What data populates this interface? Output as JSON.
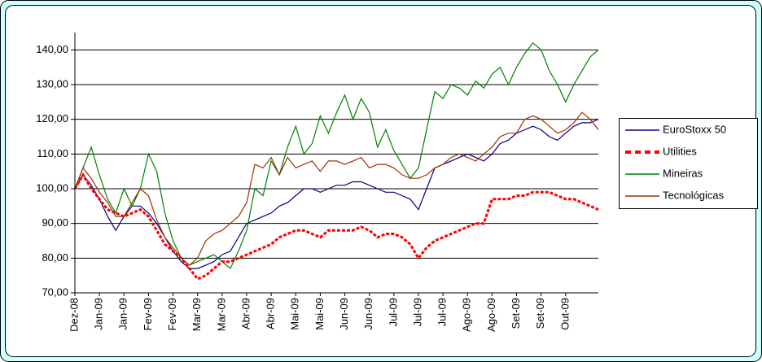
{
  "chart_data": {
    "type": "line",
    "categories": [
      "Dez-08",
      null,
      null,
      "Jan-09",
      null,
      null,
      "Jan-09",
      null,
      null,
      "Fev-09",
      null,
      null,
      "Fev-09",
      null,
      null,
      "Mar-09",
      null,
      null,
      "Mar-09",
      null,
      null,
      "Abr-09",
      null,
      null,
      "Abr-09",
      null,
      null,
      "Mai-09",
      null,
      null,
      "Mai-09",
      null,
      null,
      "Jun-09",
      null,
      null,
      "Jun-09",
      null,
      null,
      "Jul-09",
      null,
      null,
      "Jul-09",
      null,
      null,
      "Jul-09",
      null,
      null,
      "Ago-09",
      null,
      null,
      "Ago-09",
      null,
      null,
      "Set-09",
      null,
      null,
      "Set-09",
      null,
      null,
      "Out-09",
      null,
      null,
      null,
      null
    ],
    "series": [
      {
        "name": "EuroStoxx 50",
        "color": "#000080",
        "style": "solid",
        "values": [
          100,
          104,
          101,
          97,
          92,
          88,
          92,
          95,
          95,
          93,
          90,
          86,
          82,
          79,
          77,
          77,
          78,
          79,
          81,
          82,
          86,
          90,
          91,
          92,
          93,
          95,
          96,
          98,
          100,
          100,
          99,
          100,
          101,
          101,
          102,
          102,
          101,
          100,
          99,
          99,
          98,
          97,
          94,
          100,
          106,
          107,
          108,
          109,
          110,
          109,
          108,
          110,
          113,
          114,
          116,
          117,
          118,
          117,
          115,
          114,
          116,
          118,
          119,
          119,
          120
        ]
      },
      {
        "name": "Utilities",
        "color": "#ff0000",
        "style": "dashed",
        "values": [
          100,
          104,
          100,
          97,
          94,
          93,
          92,
          93,
          94,
          92,
          88,
          84,
          82,
          80,
          77,
          74,
          75,
          77,
          79,
          79,
          80,
          81,
          82,
          83,
          84,
          86,
          87,
          88,
          88,
          87,
          86,
          88,
          88,
          88,
          88,
          89,
          88,
          86,
          87,
          87,
          86,
          84,
          80,
          83,
          85,
          86,
          87,
          88,
          89,
          90,
          90,
          97,
          97,
          97,
          98,
          98,
          99,
          99,
          99,
          98,
          97,
          97,
          96,
          95,
          94
        ]
      },
      {
        "name": "Mineiras",
        "color": "#008000",
        "style": "solid",
        "values": [
          100,
          106,
          112,
          104,
          97,
          93,
          100,
          95,
          100,
          110,
          105,
          93,
          85,
          80,
          78,
          79,
          80,
          81,
          79,
          77,
          82,
          88,
          100,
          98,
          108,
          104,
          112,
          118,
          110,
          113,
          121,
          116,
          122,
          127,
          120,
          126,
          122,
          112,
          117,
          111,
          107,
          103,
          106,
          117,
          128,
          126,
          130,
          129,
          127,
          131,
          129,
          133,
          135,
          130,
          135,
          139,
          142,
          140,
          134,
          130,
          125,
          130,
          134,
          138,
          140
        ]
      },
      {
        "name": "Tecnológicas",
        "color": "#993300",
        "style": "solid",
        "values": [
          100,
          106,
          103,
          99,
          96,
          92,
          92,
          96,
          100,
          98,
          91,
          86,
          83,
          80,
          78,
          80,
          85,
          87,
          88,
          90,
          92,
          96,
          107,
          106,
          109,
          104,
          109,
          106,
          107,
          108,
          105,
          108,
          108,
          107,
          108,
          109,
          106,
          107,
          107,
          106,
          104,
          103,
          103,
          104,
          106,
          107,
          109,
          110,
          109,
          108,
          110,
          112,
          115,
          116,
          116,
          120,
          121,
          120,
          118,
          116,
          117,
          119,
          122,
          120,
          117
        ]
      }
    ],
    "ylim": [
      70,
      145
    ],
    "yticks": [
      {
        "value": 70,
        "label": "70,00"
      },
      {
        "value": 80,
        "label": "80,00"
      },
      {
        "value": 90,
        "label": "90,00"
      },
      {
        "value": 100,
        "label": "100,00"
      },
      {
        "value": 110,
        "label": "110,00"
      },
      {
        "value": 120,
        "label": "120,00"
      },
      {
        "value": 130,
        "label": "130,00"
      },
      {
        "value": 140,
        "label": "140,00"
      }
    ],
    "grid": true,
    "legend": "right"
  }
}
